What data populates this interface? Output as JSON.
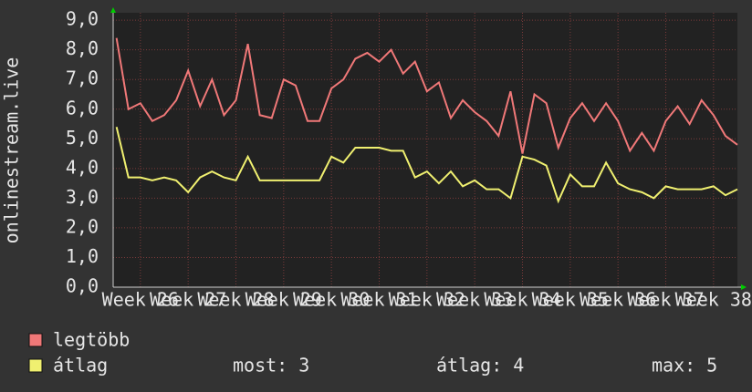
{
  "chart_data": {
    "type": "line",
    "ylabel": "onlinestream.live",
    "x": [
      25.5,
      25.75,
      26,
      26.25,
      26.5,
      26.75,
      27,
      27.25,
      27.5,
      27.75,
      28,
      28.25,
      28.5,
      28.75,
      29,
      29.25,
      29.5,
      29.75,
      30,
      30.25,
      30.5,
      30.75,
      31,
      31.25,
      31.5,
      31.75,
      32,
      32.25,
      32.5,
      32.75,
      33,
      33.25,
      33.5,
      33.75,
      34,
      34.25,
      34.5,
      34.75,
      35,
      35.25,
      35.5,
      35.75,
      36,
      36.25,
      36.5,
      36.75,
      37,
      37.25,
      37.5,
      37.75,
      38,
      38.25,
      38.5
    ],
    "series": [
      {
        "name": "legtöbb",
        "color": "#f07878",
        "values": [
          8.4,
          6.0,
          6.2,
          5.6,
          5.8,
          6.3,
          7.3,
          6.1,
          7.0,
          5.8,
          6.3,
          8.2,
          5.8,
          5.7,
          7.0,
          6.8,
          5.6,
          5.6,
          6.7,
          7.0,
          7.7,
          7.9,
          7.6,
          8.0,
          7.2,
          7.6,
          6.6,
          6.9,
          5.7,
          6.3,
          5.9,
          5.6,
          5.1,
          6.6,
          4.5,
          6.5,
          6.2,
          4.7,
          5.7,
          6.2,
          5.6,
          6.2,
          5.6,
          4.6,
          5.2,
          4.6,
          5.6,
          6.1,
          5.5,
          6.3,
          5.8,
          5.1,
          4.8
        ]
      },
      {
        "name": "átlag",
        "color": "#f0f070",
        "values": [
          5.4,
          3.7,
          3.7,
          3.6,
          3.7,
          3.6,
          3.2,
          3.7,
          3.9,
          3.7,
          3.6,
          4.4,
          3.6,
          3.6,
          3.6,
          3.6,
          3.6,
          3.6,
          4.4,
          4.2,
          4.7,
          4.7,
          4.7,
          4.6,
          4.6,
          3.7,
          3.9,
          3.5,
          3.9,
          3.4,
          3.6,
          3.3,
          3.3,
          3.0,
          4.4,
          4.3,
          4.1,
          2.9,
          3.8,
          3.4,
          3.4,
          4.2,
          3.5,
          3.3,
          3.2,
          3.0,
          3.4,
          3.3,
          3.3,
          3.3,
          3.4,
          3.1,
          3.3
        ]
      }
    ],
    "xlim": [
      25.43,
      38.5
    ],
    "xticks": [
      {
        "value": 26,
        "label": "Week 26"
      },
      {
        "value": 27,
        "label": "Week 27"
      },
      {
        "value": 28,
        "label": "Week 28"
      },
      {
        "value": 29,
        "label": "Week 29"
      },
      {
        "value": 30,
        "label": "Week 30"
      },
      {
        "value": 31,
        "label": "Week 31"
      },
      {
        "value": 32,
        "label": "Week 32"
      },
      {
        "value": 33,
        "label": "Week 33"
      },
      {
        "value": 34,
        "label": "Week 34"
      },
      {
        "value": 35,
        "label": "Week 35"
      },
      {
        "value": 36,
        "label": "Week 36"
      },
      {
        "value": 37,
        "label": "Week 37"
      },
      {
        "value": 38,
        "label": "Week 38"
      }
    ],
    "ylim": [
      0,
      9.25
    ],
    "yticks": [
      {
        "value": 0,
        "label": "0,0"
      },
      {
        "value": 1,
        "label": "1,0"
      },
      {
        "value": 2,
        "label": "2,0"
      },
      {
        "value": 3,
        "label": "3,0"
      },
      {
        "value": 4,
        "label": "4,0"
      },
      {
        "value": 5,
        "label": "5,0"
      },
      {
        "value": 6,
        "label": "6,0"
      },
      {
        "value": 7,
        "label": "7,0"
      },
      {
        "value": 8,
        "label": "8,0"
      },
      {
        "value": 9,
        "label": "9,0"
      }
    ],
    "grid": true,
    "stats": [
      {
        "label": "most:",
        "value": 3
      },
      {
        "label": "átlag:",
        "value": 4
      },
      {
        "label": "max:",
        "value": 5
      }
    ]
  }
}
